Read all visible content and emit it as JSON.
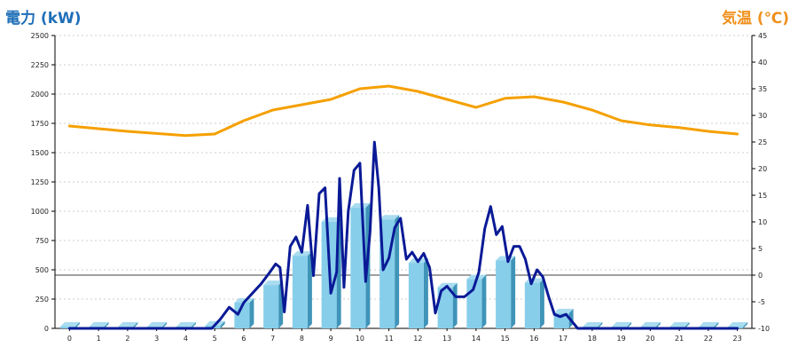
{
  "chart_data": {
    "type": "bar+line",
    "left_axis": {
      "title": "電力 (kW)",
      "ylim": [
        0,
        2500
      ],
      "ticks": [
        0,
        250,
        500,
        750,
        1000,
        1250,
        1500,
        1750,
        2000,
        2250,
        2500
      ]
    },
    "right_axis": {
      "title": "気温 (℃)",
      "ylim": [
        -10,
        45
      ],
      "ticks": [
        -10,
        -5,
        0,
        5,
        10,
        15,
        20,
        25,
        30,
        35,
        40,
        45
      ]
    },
    "categories": [
      "0",
      "1",
      "2",
      "3",
      "4",
      "5",
      "6",
      "7",
      "8",
      "9",
      "10",
      "11",
      "12",
      "13",
      "14",
      "15",
      "16",
      "17",
      "18",
      "19",
      "20",
      "21",
      "22",
      "23"
    ],
    "grid": true,
    "series": [
      {
        "kind": "bar",
        "axis": "left",
        "color": "#87ceeb",
        "values": [
          15,
          15,
          15,
          15,
          15,
          25,
          220,
          370,
          620,
          910,
          1030,
          930,
          560,
          350,
          420,
          580,
          390,
          130,
          15,
          15,
          15,
          15,
          15,
          15
        ]
      },
      {
        "kind": "line",
        "axis": "left",
        "color": "#0a1a96",
        "x": [
          0,
          1,
          2,
          3,
          4,
          4.9,
          5.2,
          5.5,
          5.8,
          6.0,
          6.3,
          6.6,
          6.9,
          7.1,
          7.25,
          7.4,
          7.6,
          7.8,
          8.0,
          8.2,
          8.4,
          8.6,
          8.8,
          9.0,
          9.2,
          9.3,
          9.45,
          9.6,
          9.8,
          10.0,
          10.2,
          10.35,
          10.5,
          10.65,
          10.8,
          11.0,
          11.2,
          11.4,
          11.6,
          11.8,
          12.0,
          12.2,
          12.4,
          12.6,
          12.8,
          13.0,
          13.3,
          13.6,
          13.9,
          14.1,
          14.3,
          14.5,
          14.7,
          14.9,
          15.1,
          15.3,
          15.5,
          15.7,
          15.9,
          16.1,
          16.3,
          16.5,
          16.7,
          16.9,
          17.1,
          17.3,
          17.5,
          18,
          19,
          20,
          21,
          22,
          23
        ],
        "values": [
          0,
          0,
          0,
          0,
          0,
          0,
          80,
          180,
          120,
          220,
          300,
          380,
          480,
          550,
          520,
          140,
          700,
          780,
          650,
          1050,
          450,
          1150,
          1200,
          300,
          480,
          1280,
          350,
          1000,
          1350,
          1410,
          400,
          820,
          1590,
          1200,
          500,
          600,
          860,
          940,
          590,
          650,
          570,
          640,
          520,
          130,
          320,
          360,
          270,
          270,
          330,
          480,
          850,
          1040,
          800,
          870,
          570,
          700,
          700,
          590,
          380,
          500,
          440,
          270,
          120,
          100,
          120,
          60,
          0,
          0,
          0,
          0,
          0,
          0,
          0
        ]
      },
      {
        "kind": "line",
        "axis": "right",
        "color": "#f5a000",
        "x": [
          0,
          1,
          2,
          3,
          4,
          5,
          6,
          7,
          8,
          9,
          10,
          11,
          12,
          13,
          14,
          15,
          16,
          17,
          18,
          19,
          20,
          21,
          22,
          23
        ],
        "values": [
          28,
          27.5,
          27,
          26.6,
          26.2,
          26.5,
          29,
          31,
          32,
          33,
          35,
          35.5,
          34.5,
          33,
          31.5,
          33.2,
          33.5,
          32.5,
          31,
          29,
          28.2,
          27.7,
          27,
          26.5
        ]
      }
    ]
  }
}
